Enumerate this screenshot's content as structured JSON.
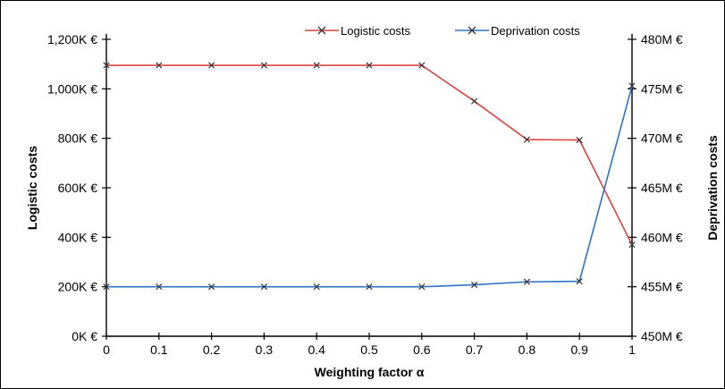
{
  "chart_data": {
    "type": "line",
    "xlabel": "Weighting factor α",
    "ylabel_left": "Logistic costs",
    "ylabel_right": "Deprivation costs",
    "x": [
      0,
      0.1,
      0.2,
      0.3,
      0.4,
      0.5,
      0.6,
      0.7,
      0.8,
      0.9,
      1
    ],
    "x_tick_labels": [
      "0",
      "0.1",
      "0.2",
      "0.3",
      "0.4",
      "0.5",
      "0.6",
      "0.7",
      "0.8",
      "0.9",
      "1"
    ],
    "y_left": {
      "lim": [
        0,
        1200
      ],
      "ticks": [
        0,
        200,
        400,
        600,
        800,
        1000,
        1200
      ],
      "tick_labels": [
        "0K €",
        "200K €",
        "400K €",
        "600K €",
        "800K €",
        "1,000K €",
        "1,200K €"
      ]
    },
    "y_right": {
      "lim": [
        450,
        480
      ],
      "ticks": [
        450,
        455,
        460,
        465,
        470,
        475,
        480
      ],
      "tick_labels": [
        "450M €",
        "455M €",
        "460M €",
        "465M €",
        "470M €",
        "475M €",
        "480M €"
      ]
    },
    "grid": false,
    "legend_position": "top-center",
    "series": [
      {
        "name": "Logistic costs",
        "axis": "left",
        "color": "#d64541",
        "marker": "x",
        "values": [
          1095,
          1095,
          1095,
          1095,
          1095,
          1095,
          1095,
          950,
          795,
          793,
          370
        ]
      },
      {
        "name": "Deprivation costs",
        "axis": "right",
        "color": "#2e73c6",
        "marker": "x",
        "values": [
          455.0,
          455.0,
          455.0,
          455.0,
          455.0,
          455.0,
          455.0,
          455.2,
          455.5,
          455.55,
          475.3
        ]
      }
    ]
  }
}
